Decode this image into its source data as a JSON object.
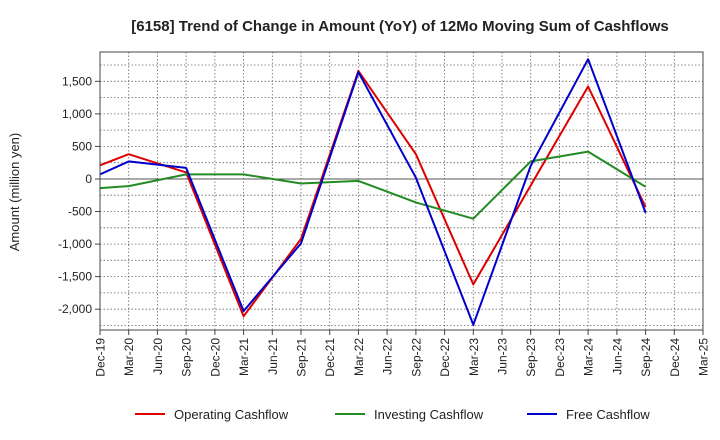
{
  "chart_data": {
    "type": "line",
    "title": "[6158]  Trend of Change in Amount (YoY) of 12Mo Moving Sum of Cashflows",
    "xlabel": "",
    "ylabel": "Amount (million yen)",
    "ylim": [
      -2320,
      1950
    ],
    "yticks": [
      -2000,
      -1500,
      -1000,
      -500,
      0,
      500,
      1000,
      1500
    ],
    "ytick_labels": [
      "-2,000",
      "-1,500",
      "-1,000",
      "-500",
      "0",
      "500",
      "1,000",
      "1,500"
    ],
    "categories": [
      "Dec-19",
      "Mar-20",
      "Jun-20",
      "Sep-20",
      "Dec-20",
      "Mar-21",
      "Jun-21",
      "Sep-21",
      "Dec-21",
      "Mar-22",
      "Jun-22",
      "Sep-22",
      "Dec-22",
      "Mar-23",
      "Jun-23",
      "Sep-23",
      "Dec-23",
      "Mar-24",
      "Jun-24",
      "Sep-24",
      "Dec-24",
      "Mar-25"
    ],
    "grid": true,
    "legend_position": "bottom",
    "series": [
      {
        "name": "Operating Cashflow",
        "color": "#dd0000",
        "values": [
          210,
          380,
          null,
          100,
          null,
          -2110,
          null,
          -920,
          null,
          1660,
          null,
          380,
          null,
          -1620,
          null,
          null,
          null,
          1420,
          null,
          -430,
          null,
          null
        ]
      },
      {
        "name": "Investing Cashflow",
        "color": "#228b22",
        "values": [
          -140,
          -110,
          null,
          70,
          null,
          70,
          null,
          -70,
          null,
          -30,
          null,
          -360,
          null,
          -610,
          null,
          270,
          null,
          420,
          null,
          -120,
          null,
          null
        ]
      },
      {
        "name": "Free Cashflow",
        "color": "#0000cc",
        "values": [
          70,
          270,
          null,
          170,
          null,
          -2030,
          null,
          -990,
          null,
          1640,
          null,
          20,
          null,
          -2240,
          null,
          200,
          null,
          1840,
          null,
          -520,
          null,
          null
        ]
      }
    ]
  }
}
